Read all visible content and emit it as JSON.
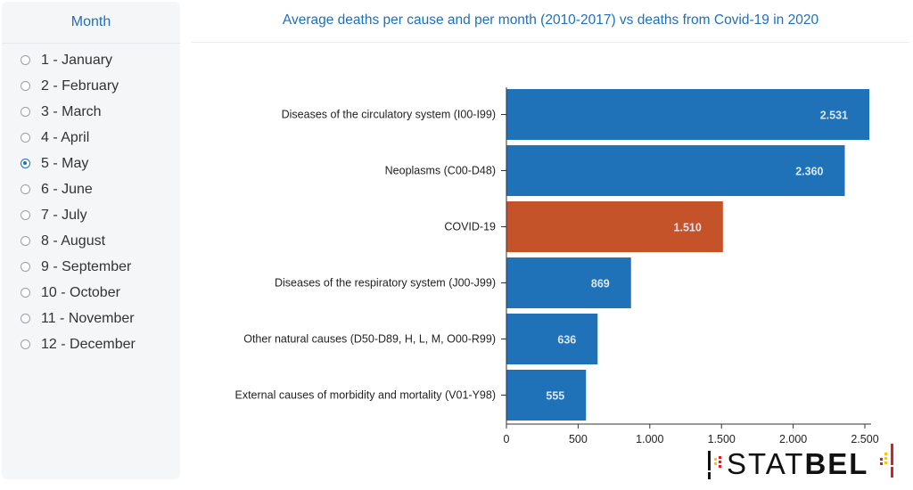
{
  "sidebar": {
    "title": "Month",
    "selected_index": 4,
    "months": [
      "1 - January",
      "2 - February",
      "3 - March",
      "4 - April",
      "5 - May",
      "6 - June",
      "7 - July",
      "8 - August",
      "9 - September",
      "10 - October",
      "11 - November",
      "12 - December"
    ]
  },
  "chart_data": {
    "type": "bar",
    "orientation": "horizontal",
    "title": "Average deaths per cause and per month (2010-2017) vs deaths from Covid-19 in 2020",
    "categories": [
      "Diseases of the circulatory system (I00-I99)",
      "Neoplasms (C00-D48)",
      "COVID-19",
      "Diseases of the respiratory system (J00-J99)",
      "Other natural causes (D50-D89, H, L, M, O00-R99)",
      "External causes of morbidity and mortality (V01-Y98)"
    ],
    "values": [
      2531,
      2360,
      1510,
      869,
      636,
      555
    ],
    "value_labels": [
      "2.531",
      "2.360",
      "1.510",
      "869",
      "636",
      "555"
    ],
    "bar_colors": [
      "#1f72b8",
      "#1f72b8",
      "#c4532a",
      "#1f72b8",
      "#1f72b8",
      "#1f72b8"
    ],
    "x_ticks": [
      0,
      500,
      1000,
      1500,
      2000,
      2500
    ],
    "x_tick_labels": [
      "0",
      "500",
      "1.000",
      "1.500",
      "2.000",
      "2.500"
    ],
    "xlim": [
      0,
      2600
    ],
    "grid": false,
    "legend": "none"
  },
  "logo": {
    "text_light": "STAT",
    "text_bold": "BEL",
    "colors": {
      "black": "#111111",
      "yellow": "#f5c518",
      "red": "#d6202a"
    }
  }
}
